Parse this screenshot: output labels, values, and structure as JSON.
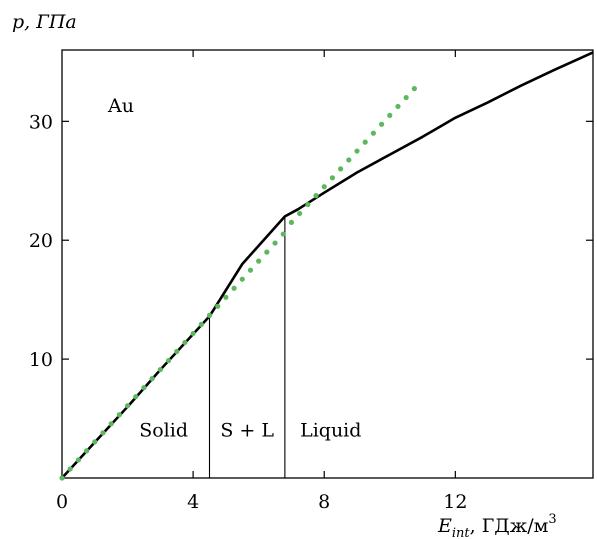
{
  "chart_data": {
    "type": "line",
    "ylabel": "p, ГПа",
    "xlabel_main": "E",
    "xlabel_sub": "int",
    "xlabel_units": ", ГДж/м",
    "xlabel_sup": "3",
    "sample_label": "Au",
    "xlim": [
      0,
      16.2
    ],
    "ylim": [
      0,
      36
    ],
    "x_ticks": [
      0,
      4,
      8,
      12
    ],
    "x_tick_labels": [
      "0",
      "4",
      "8",
      "12"
    ],
    "y_ticks": [
      10,
      20,
      30
    ],
    "y_tick_labels": [
      "10",
      "20",
      "30"
    ],
    "grid": false,
    "series": [
      {
        "style": "solid",
        "color": "#000000",
        "x": [
          0,
          1.0,
          2.0,
          3.0,
          4.5,
          5.5,
          6.8,
          7.2,
          8.0,
          9.0,
          10.0,
          11.0,
          12.0,
          13.0,
          14.0,
          15.0,
          16.2
        ],
        "y": [
          0,
          3.0,
          6.0,
          9.1,
          13.6,
          18.0,
          22.0,
          22.6,
          24.0,
          25.7,
          27.2,
          28.7,
          30.3,
          31.6,
          33.0,
          34.3,
          35.8
        ]
      },
      {
        "style": "dotted",
        "color": "#5cb85c",
        "x": [
          0,
          0.25,
          0.5,
          0.75,
          1.0,
          1.25,
          1.5,
          1.75,
          2.0,
          2.25,
          2.5,
          2.75,
          3.0,
          3.25,
          3.5,
          3.75,
          4.0,
          4.25,
          4.5,
          4.75,
          5.0,
          5.25,
          5.5,
          5.75,
          6.0,
          6.25,
          6.5,
          6.75,
          7.0,
          7.25,
          7.5,
          7.75,
          8.0,
          8.25,
          8.5,
          8.75,
          9.0,
          9.25,
          9.5,
          9.75,
          10.0,
          10.25,
          10.5,
          10.75
        ],
        "y": [
          0,
          0.76,
          1.52,
          2.28,
          3.04,
          3.8,
          4.56,
          5.32,
          6.08,
          6.84,
          7.6,
          8.36,
          9.12,
          9.88,
          10.64,
          11.4,
          12.16,
          12.92,
          13.68,
          14.44,
          15.2,
          15.96,
          16.72,
          17.48,
          18.24,
          19.0,
          19.76,
          20.52,
          21.5,
          22.25,
          23.0,
          23.75,
          24.5,
          25.25,
          26.0,
          26.75,
          27.5,
          28.25,
          29.0,
          29.75,
          30.5,
          31.25,
          32.0,
          32.75
        ]
      }
    ],
    "phase_boundaries": [
      {
        "x": 4.5,
        "y_top": 13.6
      },
      {
        "x": 6.8,
        "y_top": 22.0
      }
    ],
    "phase_labels": [
      {
        "text": "Solid",
        "x_center": 3.1
      },
      {
        "text": "S + L",
        "x_center": 5.65
      },
      {
        "text": "Liquid",
        "x_center": 8.2
      }
    ],
    "phase_label_y": 3.5
  }
}
